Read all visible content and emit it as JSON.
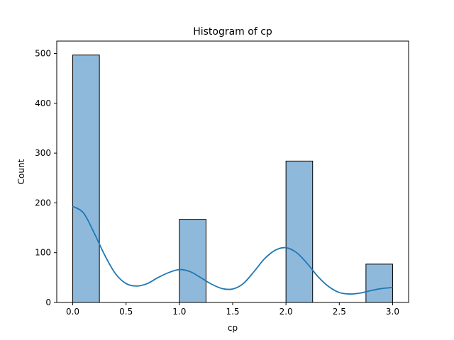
{
  "chart_data": {
    "type": "bar",
    "title": "Histogram of cp",
    "xlabel": "cp",
    "ylabel": "Count",
    "xlim": [
      -0.15,
      3.15
    ],
    "ylim": [
      0,
      525
    ],
    "x_ticks": [
      0.0,
      0.5,
      1.0,
      1.5,
      2.0,
      2.5,
      3.0
    ],
    "x_tick_labels": [
      "0.0",
      "0.5",
      "1.0",
      "1.5",
      "2.0",
      "2.5",
      "3.0"
    ],
    "y_ticks": [
      0,
      100,
      200,
      300,
      400,
      500
    ],
    "y_tick_labels": [
      "0",
      "100",
      "200",
      "300",
      "400",
      "500"
    ],
    "bins": [
      {
        "start": 0.0,
        "end": 0.25,
        "count": 497
      },
      {
        "start": 0.25,
        "end": 0.5,
        "count": 0
      },
      {
        "start": 0.5,
        "end": 0.75,
        "count": 0
      },
      {
        "start": 0.75,
        "end": 1.0,
        "count": 0
      },
      {
        "start": 1.0,
        "end": 1.25,
        "count": 167
      },
      {
        "start": 1.25,
        "end": 1.5,
        "count": 0
      },
      {
        "start": 1.5,
        "end": 1.75,
        "count": 0
      },
      {
        "start": 1.75,
        "end": 2.0,
        "count": 0
      },
      {
        "start": 2.0,
        "end": 2.25,
        "count": 284
      },
      {
        "start": 2.25,
        "end": 2.5,
        "count": 0
      },
      {
        "start": 2.5,
        "end": 2.75,
        "count": 0
      },
      {
        "start": 2.75,
        "end": 3.0,
        "count": 77
      }
    ],
    "kde": {
      "x": [
        0.0,
        0.1,
        0.2,
        0.3,
        0.4,
        0.5,
        0.6,
        0.7,
        0.8,
        0.9,
        1.0,
        1.1,
        1.2,
        1.3,
        1.4,
        1.5,
        1.6,
        1.7,
        1.8,
        1.9,
        2.0,
        2.1,
        2.2,
        2.3,
        2.4,
        2.5,
        2.6,
        2.7,
        2.8,
        2.9,
        3.0
      ],
      "y": [
        193,
        180,
        140,
        95,
        58,
        38,
        33,
        38,
        50,
        60,
        66,
        62,
        50,
        37,
        28,
        27,
        38,
        62,
        88,
        105,
        110,
        100,
        78,
        52,
        32,
        20,
        17,
        19,
        24,
        28,
        30
      ]
    },
    "colors": {
      "bar_fill": "#8fb9db",
      "bar_edge": "#000000",
      "kde_line": "#1f77b4"
    },
    "grid": false,
    "legend": "none"
  }
}
